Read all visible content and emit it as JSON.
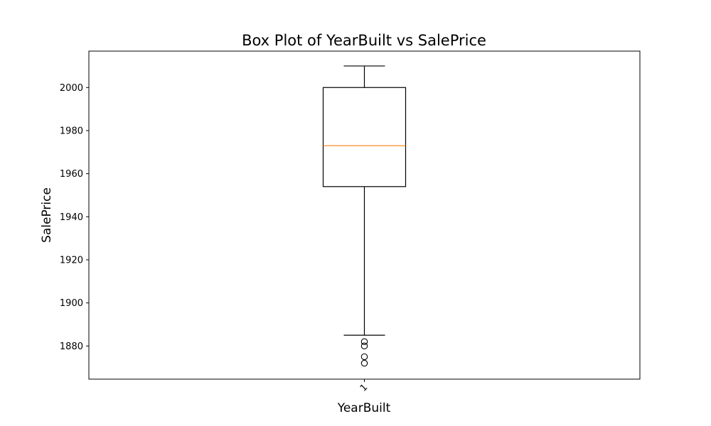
{
  "chart_data": {
    "type": "box",
    "title": "Box Plot of YearBuilt vs SalePrice",
    "xlabel": "YearBuilt",
    "ylabel": "SalePrice",
    "categories": [
      "1"
    ],
    "ylim": [
      1864.6,
      2016.9
    ],
    "y_ticks": [
      1880,
      1900,
      1920,
      1940,
      1960,
      1980,
      2000
    ],
    "boxes": [
      {
        "category": "1",
        "whisker_low": 1885,
        "q1": 1954,
        "median": 1973,
        "q3": 2000,
        "whisker_high": 2010,
        "outliers": [
          1872,
          1875,
          1880,
          1882
        ]
      }
    ],
    "colors": {
      "box": "#000000",
      "median": "#ff7f0e",
      "outlier": "#000000"
    },
    "grid": false
  }
}
